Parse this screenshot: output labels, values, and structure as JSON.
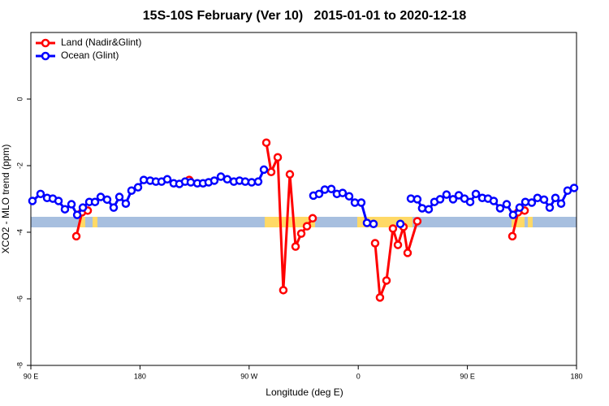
{
  "chart_data": {
    "type": "line",
    "title": "15S-10S February (Ver 10)   2015-01-01 to 2020-12-18",
    "x_label": "Longitude (deg E)",
    "y_label": "XCO2 - MLO trend (ppm)",
    "xlim": [
      90,
      540
    ],
    "xticks": [
      {
        "value": 90,
        "label": "90 E"
      },
      180,
      {
        "value": 270,
        "label": "90 W"
      },
      {
        "value": 360,
        "label": "0"
      },
      {
        "value": 450,
        "label": "90 E"
      },
      {
        "value": 540,
        "label": "180"
      }
    ],
    "ylim": [
      -8,
      2
    ],
    "yticks": [
      -8,
      -6,
      -4,
      -2,
      0
    ],
    "legend": "upper left",
    "series": [
      {
        "name": "Land (Nadir&Glint)",
        "color": "#ff0000",
        "x": [
          127.5,
          132.2,
          136.9,
          null,
          220.6,
          null,
          284.2,
          288.2,
          293.6,
          298.2,
          303.6,
          308.3,
          313.0,
          317.7,
          322.4,
          null,
          373.9,
          377.9,
          383.3,
          388.6,
          392.7,
          397.3,
          400.7,
          408.7,
          null,
          487.1,
          491.8,
          497.2
        ],
        "values": [
          -4.12,
          -3.4,
          -3.35,
          null,
          -2.43,
          null,
          -1.31,
          -2.19,
          -1.75,
          -5.74,
          -2.26,
          -4.43,
          -4.04,
          -3.82,
          -3.58,
          null,
          -4.33,
          -5.96,
          -5.45,
          -3.89,
          -4.38,
          -3.84,
          -4.62,
          -3.67,
          null,
          -4.12,
          -3.4,
          -3.35
        ]
      },
      {
        "name": "Ocean (Glint)",
        "color": "#0000ff",
        "x": [
          91.3,
          98.0,
          103.4,
          108.1,
          112.8,
          118.1,
          123.5,
          128.2,
          132.9,
          138.2,
          142.9,
          147.6,
          152.9,
          158.3,
          163.0,
          168.3,
          173.0,
          178.4,
          183.1,
          188.4,
          193.1,
          197.8,
          202.5,
          207.8,
          212.5,
          217.2,
          221.9,
          227.3,
          232.0,
          236.6,
          241.3,
          246.7,
          252.0,
          257.4,
          262.1,
          266.8,
          272.1,
          277.5,
          282.2,
          null,
          323.0,
          327.7,
          332.4,
          337.8,
          342.4,
          347.1,
          352.5,
          357.2,
          362.5,
          367.2,
          372.6,
          null,
          394.7,
          null,
          403.4,
          408.7,
          412.7,
          418.1,
          422.8,
          427.5,
          432.8,
          438.2,
          442.9,
          447.6,
          452.3,
          457.0,
          462.3,
          467.0,
          471.7,
          477.0,
          482.4,
          487.7,
          493.1,
          497.8,
          503.1,
          507.8,
          513.2,
          517.9,
          522.6,
          527.3,
          532.6,
          538.0
        ],
        "values": [
          -3.06,
          -2.85,
          -2.97,
          -2.99,
          -3.06,
          -3.31,
          -3.16,
          -3.48,
          -3.26,
          -3.09,
          -3.09,
          -2.94,
          -3.02,
          -3.26,
          -2.94,
          -3.14,
          -2.75,
          -2.65,
          -2.43,
          -2.45,
          -2.48,
          -2.48,
          -2.41,
          -2.53,
          -2.55,
          -2.48,
          -2.5,
          -2.53,
          -2.53,
          -2.5,
          -2.45,
          -2.33,
          -2.41,
          -2.48,
          -2.45,
          -2.48,
          -2.5,
          -2.48,
          -2.12,
          null,
          -2.9,
          -2.85,
          -2.72,
          -2.7,
          -2.85,
          -2.82,
          -2.92,
          -3.11,
          -3.11,
          -3.72,
          -3.75,
          null,
          -3.75,
          null,
          -2.99,
          -3.01,
          -3.28,
          -3.31,
          -3.09,
          -3.01,
          -2.87,
          -3.01,
          -2.89,
          -2.99,
          -3.09,
          -2.85,
          -2.97,
          -2.99,
          -3.06,
          -3.28,
          -3.16,
          -3.48,
          -3.26,
          -3.09,
          -3.11,
          -2.97,
          -3.02,
          -3.26,
          -2.97,
          -3.14,
          -2.75,
          -2.67
        ]
      }
    ]
  }
}
